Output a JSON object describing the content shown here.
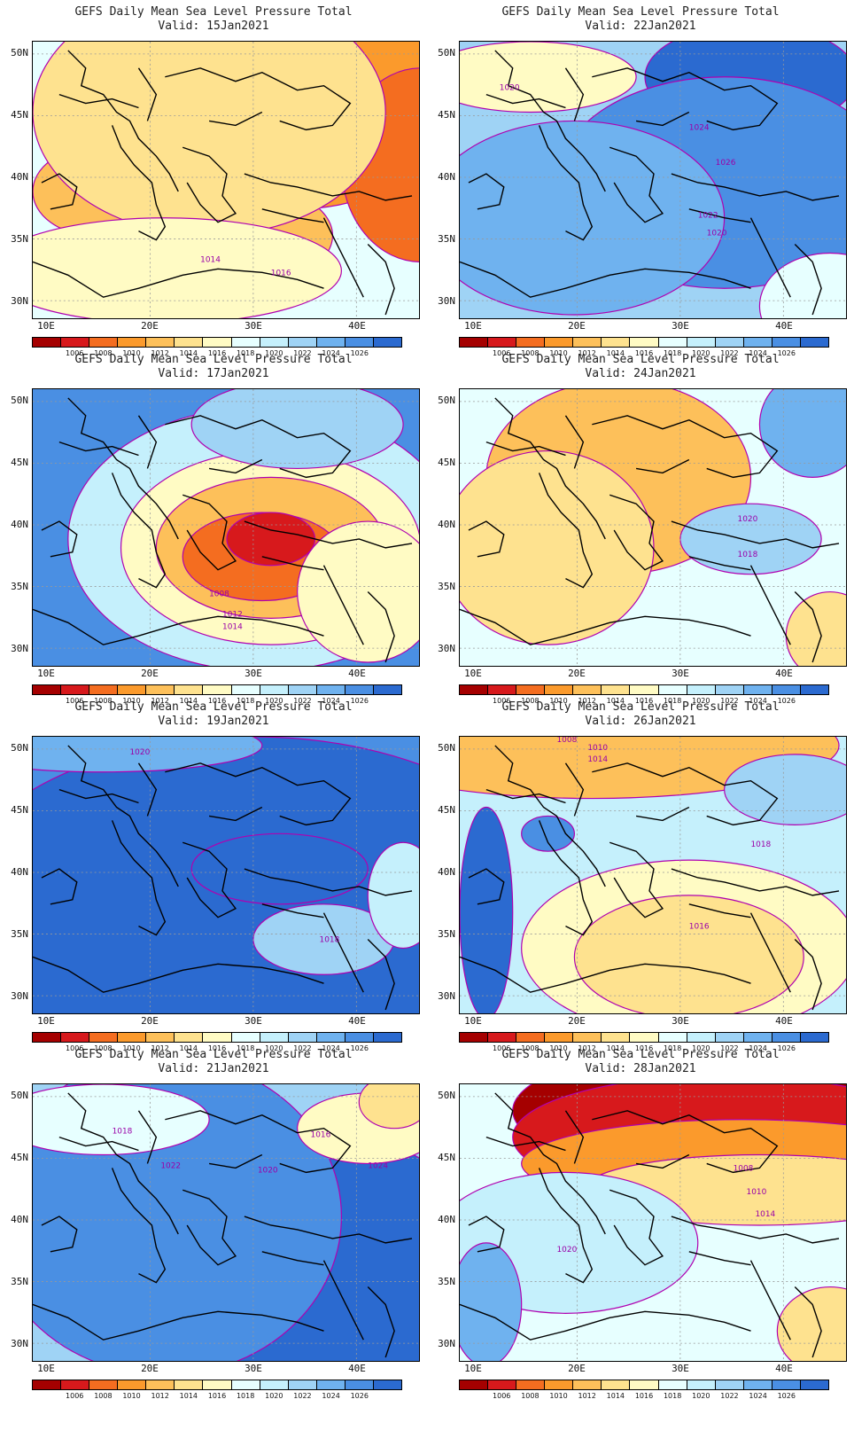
{
  "palette": [
    "#a50000",
    "#d7191c",
    "#f46d20",
    "#fb9a2c",
    "#fdc05a",
    "#fee28f",
    "#fffbc4",
    "#e7ffff",
    "#c5f0fc",
    "#9fd3f5",
    "#6fb2ef",
    "#4a8fe3",
    "#2b6ad0"
  ],
  "colorbar_labels": [
    "1006",
    "1008",
    "1010",
    "1012",
    "1014",
    "1016",
    "1018",
    "1020",
    "1022",
    "1024",
    "1026"
  ],
  "axes": {
    "lat_labels": [
      "50N",
      "45N",
      "40N",
      "35N",
      "30N"
    ],
    "lon_labels": [
      "10E",
      "20E",
      "30E",
      "40E"
    ]
  },
  "panels": [
    {
      "title": "GEFS Daily Mean Sea Level Pressure Total",
      "valid": "Valid: 15Jan2021",
      "bg": 7,
      "blobs": [
        [
          300,
          40,
          190,
          150,
          3
        ],
        [
          440,
          140,
          90,
          110,
          2
        ],
        [
          70,
          170,
          70,
          50,
          4
        ],
        [
          230,
          220,
          110,
          60,
          4
        ],
        [
          200,
          80,
          200,
          140,
          5
        ],
        [
          150,
          260,
          200,
          60,
          6
        ]
      ],
      "isolabels": [
        {
          "t": "1014",
          "x": 190,
          "y": 250
        },
        {
          "t": "1016",
          "x": 270,
          "y": 265
        }
      ]
    },
    {
      "title": "GEFS Daily Mean Sea Level Pressure Total",
      "valid": "Valid: 22Jan2021",
      "bg": 9,
      "blobs": [
        [
          330,
          40,
          120,
          60,
          12
        ],
        [
          380,
          190,
          90,
          50,
          12
        ],
        [
          300,
          160,
          190,
          120,
          11
        ],
        [
          130,
          200,
          170,
          110,
          10
        ],
        [
          80,
          40,
          120,
          40,
          6
        ],
        [
          420,
          300,
          80,
          60,
          7
        ]
      ],
      "isolabels": [
        {
          "t": "1020",
          "x": 45,
          "y": 55
        },
        {
          "t": "1024",
          "x": 260,
          "y": 100
        },
        {
          "t": "1026",
          "x": 290,
          "y": 140
        },
        {
          "t": "1022",
          "x": 270,
          "y": 200
        },
        {
          "t": "1020",
          "x": 280,
          "y": 220
        }
      ]
    },
    {
      "title": "GEFS Daily Mean Sea Level Pressure Total",
      "valid": "Valid: 17Jan2021",
      "bg": 11,
      "blobs": [
        [
          260,
          170,
          220,
          150,
          8
        ],
        [
          270,
          180,
          170,
          110,
          6
        ],
        [
          270,
          180,
          130,
          80,
          4
        ],
        [
          260,
          190,
          90,
          50,
          2
        ],
        [
          270,
          170,
          50,
          30,
          1
        ],
        [
          380,
          230,
          80,
          80,
          6
        ],
        [
          300,
          40,
          120,
          50,
          9
        ]
      ],
      "isolabels": [
        {
          "t": "1008",
          "x": 200,
          "y": 235
        },
        {
          "t": "1012",
          "x": 215,
          "y": 258
        },
        {
          "t": "1014",
          "x": 215,
          "y": 272
        }
      ]
    },
    {
      "title": "GEFS Daily Mean Sea Level Pressure Total",
      "valid": "Valid: 24Jan2021",
      "bg": 7,
      "blobs": [
        [
          180,
          100,
          150,
          110,
          4
        ],
        [
          100,
          140,
          30,
          25,
          2
        ],
        [
          100,
          180,
          120,
          110,
          5
        ],
        [
          330,
          170,
          80,
          40,
          9
        ],
        [
          400,
          40,
          60,
          60,
          10
        ],
        [
          420,
          280,
          50,
          50,
          5
        ]
      ],
      "isolabels": [
        {
          "t": "1020",
          "x": 315,
          "y": 150
        },
        {
          "t": "1018",
          "x": 315,
          "y": 190
        }
      ]
    },
    {
      "title": "GEFS Daily Mean Sea Level Pressure Total",
      "valid": "Valid: 19Jan2021",
      "bg": 11,
      "blobs": [
        [
          250,
          200,
          350,
          200,
          12
        ],
        [
          280,
          150,
          100,
          40,
          12
        ],
        [
          330,
          230,
          80,
          40,
          9
        ],
        [
          420,
          180,
          40,
          60,
          8
        ],
        [
          80,
          10,
          180,
          30,
          10
        ]
      ],
      "isolabels": [
        {
          "t": "1020",
          "x": 110,
          "y": 20
        },
        {
          "t": "1018",
          "x": 325,
          "y": 233
        }
      ]
    },
    {
      "title": "GEFS Daily Mean Sea Level Pressure Total",
      "valid": "Valid: 26Jan2021",
      "bg": 8,
      "blobs": [
        [
          150,
          0,
          260,
          40,
          2
        ],
        [
          150,
          10,
          280,
          60,
          4
        ],
        [
          260,
          240,
          190,
          100,
          6
        ],
        [
          260,
          250,
          130,
          70,
          5
        ],
        [
          100,
          110,
          30,
          20,
          11
        ],
        [
          30,
          200,
          30,
          120,
          12
        ],
        [
          380,
          60,
          80,
          40,
          9
        ]
      ],
      "isolabels": [
        {
          "t": "1008",
          "x": 110,
          "y": 6
        },
        {
          "t": "1010",
          "x": 145,
          "y": 15
        },
        {
          "t": "1014",
          "x": 145,
          "y": 28
        },
        {
          "t": "1018",
          "x": 330,
          "y": 125
        },
        {
          "t": "1016",
          "x": 260,
          "y": 218
        }
      ]
    },
    {
      "title": "GEFS Daily Mean Sea Level Pressure Total",
      "valid": "Valid: 21Jan2021",
      "bg": 9,
      "blobs": [
        [
          260,
          200,
          260,
          160,
          12
        ],
        [
          150,
          150,
          200,
          180,
          11
        ],
        [
          80,
          40,
          120,
          40,
          7
        ],
        [
          380,
          50,
          80,
          40,
          6
        ],
        [
          410,
          20,
          40,
          30,
          5
        ]
      ],
      "isolabels": [
        {
          "t": "1018",
          "x": 90,
          "y": 56
        },
        {
          "t": "1016",
          "x": 315,
          "y": 60
        },
        {
          "t": "1022",
          "x": 145,
          "y": 95
        },
        {
          "t": "1020",
          "x": 255,
          "y": 100
        },
        {
          "t": "1024",
          "x": 380,
          "y": 95
        }
      ]
    },
    {
      "title": "GEFS Daily Mean Sea Level Pressure Total",
      "valid": "Valid: 28Jan2021",
      "bg": 7,
      "blobs": [
        [
          280,
          30,
          220,
          70,
          0
        ],
        [
          300,
          60,
          240,
          70,
          1
        ],
        [
          320,
          90,
          250,
          50,
          3
        ],
        [
          340,
          120,
          200,
          40,
          5
        ],
        [
          120,
          180,
          150,
          80,
          8
        ],
        [
          30,
          250,
          40,
          70,
          10
        ],
        [
          420,
          280,
          60,
          50,
          5
        ]
      ],
      "isolabels": [
        {
          "t": "1008",
          "x": 310,
          "y": 98
        },
        {
          "t": "1010",
          "x": 325,
          "y": 125
        },
        {
          "t": "1014",
          "x": 335,
          "y": 150
        },
        {
          "t": "1020",
          "x": 110,
          "y": 190
        }
      ]
    }
  ]
}
